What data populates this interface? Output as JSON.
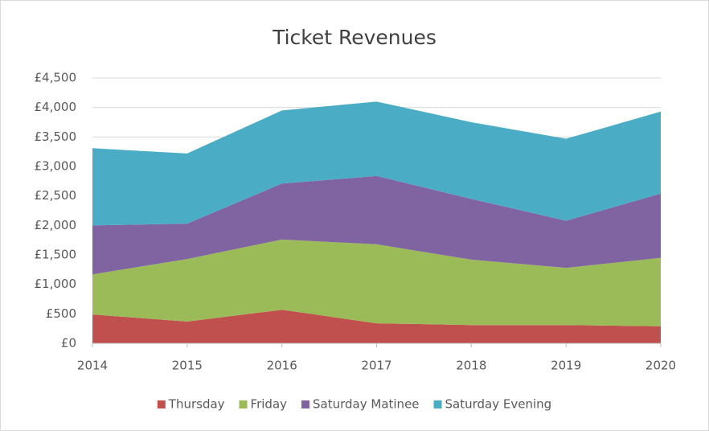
{
  "chart_data": {
    "type": "stacked_area",
    "title": "Ticket Revenues",
    "x": [
      2014,
      2015,
      2016,
      2017,
      2018,
      2019,
      2020
    ],
    "xlim": [
      2014,
      2020
    ],
    "xticks": [
      2014,
      2015,
      2016,
      2017,
      2018,
      2019,
      2020
    ],
    "ylim": [
      0,
      4500
    ],
    "yticks": [
      {
        "value": 0,
        "label": "£0"
      },
      {
        "value": 500,
        "label": "£500"
      },
      {
        "value": 1000,
        "label": "£1,000"
      },
      {
        "value": 1500,
        "label": "£1,500"
      },
      {
        "value": 2000,
        "label": "£2,000"
      },
      {
        "value": 2500,
        "label": "£2,500"
      },
      {
        "value": 3000,
        "label": "£3,000"
      },
      {
        "value": 3500,
        "label": "£3,500"
      },
      {
        "value": 4000,
        "label": "£4,000"
      },
      {
        "value": 4500,
        "label": "£4,500"
      }
    ],
    "grid": true,
    "legend": "bottom",
    "series": [
      {
        "name": "Thursday",
        "color": "#c0504d",
        "values": [
          490,
          370,
          570,
          340,
          310,
          310,
          290
        ]
      },
      {
        "name": "Friday",
        "color": "#9bbb59",
        "values": [
          680,
          1060,
          1190,
          1340,
          1110,
          970,
          1160
        ]
      },
      {
        "name": "Saturday Matinee",
        "color": "#8064a2",
        "values": [
          830,
          600,
          950,
          1160,
          1030,
          800,
          1090
        ]
      },
      {
        "name": "Saturday Evening",
        "color": "#4bacc6",
        "values": [
          1310,
          1190,
          1240,
          1260,
          1300,
          1390,
          1390
        ]
      }
    ]
  }
}
